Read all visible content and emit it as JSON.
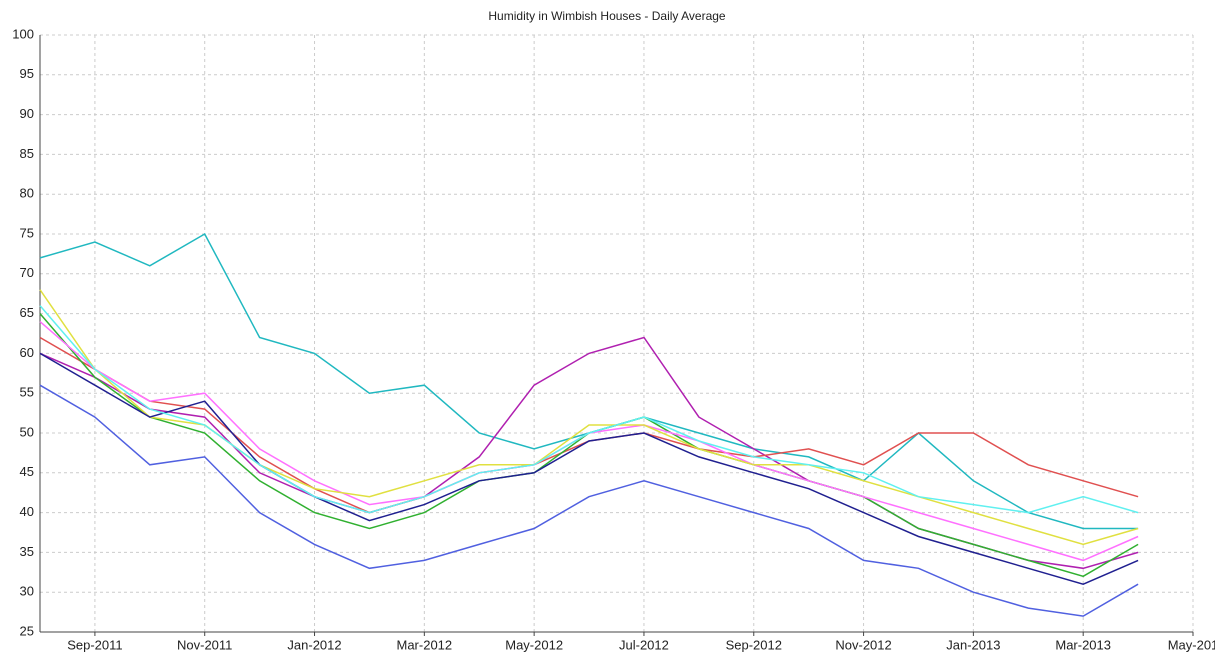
{
  "chart_data": {
    "type": "line",
    "title": "Humidity in Wimbish Houses - Daily Average",
    "x": [
      "2011-08",
      "2011-09",
      "2011-10",
      "2011-11",
      "2011-12",
      "2012-01",
      "2012-02",
      "2012-03",
      "2012-04",
      "2012-05",
      "2012-06",
      "2012-07",
      "2012-08",
      "2012-09",
      "2012-10",
      "2012-11",
      "2012-12",
      "2013-01",
      "2013-02",
      "2013-03",
      "2013-04"
    ],
    "xlim": [
      "2011-08",
      "2013-05"
    ],
    "xticks": [
      {
        "value": "2011-09",
        "label": "Sep-2011"
      },
      {
        "value": "2011-11",
        "label": "Nov-2011"
      },
      {
        "value": "2012-01",
        "label": "Jan-2012"
      },
      {
        "value": "2012-03",
        "label": "Mar-2012"
      },
      {
        "value": "2012-05",
        "label": "May-2012"
      },
      {
        "value": "2012-07",
        "label": "Jul-2012"
      },
      {
        "value": "2012-09",
        "label": "Sep-2012"
      },
      {
        "value": "2012-11",
        "label": "Nov-2012"
      },
      {
        "value": "2013-01",
        "label": "Jan-2013"
      },
      {
        "value": "2013-03",
        "label": "Mar-2013"
      },
      {
        "value": "2013-05",
        "label": "May-201"
      }
    ],
    "ylim": [
      25,
      100
    ],
    "yticks": [
      25,
      30,
      35,
      40,
      45,
      50,
      55,
      60,
      65,
      70,
      75,
      80,
      85,
      90,
      95,
      100
    ],
    "grid": true,
    "series": [
      {
        "color": "#20b8c0",
        "values": [
          72,
          74,
          71,
          75,
          62,
          60,
          55,
          56,
          50,
          48,
          50,
          52,
          50,
          48,
          47,
          44,
          50,
          44,
          40,
          38,
          38
        ]
      },
      {
        "color": "#b020b0",
        "values": [
          60,
          57,
          53,
          52,
          45,
          42,
          40,
          42,
          47,
          56,
          60,
          62,
          52,
          48,
          44,
          42,
          38,
          36,
          34,
          33,
          35
        ]
      },
      {
        "color": "#e05050",
        "values": [
          62,
          58,
          54,
          53,
          47,
          43,
          40,
          42,
          45,
          46,
          49,
          50,
          48,
          47,
          48,
          46,
          50,
          50,
          46,
          44,
          42
        ]
      },
      {
        "color": "#5060e0",
        "values": [
          56,
          52,
          46,
          47,
          40,
          36,
          33,
          34,
          36,
          38,
          42,
          44,
          42,
          40,
          38,
          34,
          33,
          30,
          28,
          27,
          31
        ]
      },
      {
        "color": "#30b030",
        "values": [
          65,
          57,
          52,
          50,
          44,
          40,
          38,
          40,
          44,
          45,
          50,
          52,
          48,
          46,
          44,
          42,
          38,
          36,
          34,
          32,
          36
        ]
      },
      {
        "color": "#ff70ff",
        "values": [
          64,
          58,
          54,
          55,
          48,
          44,
          41,
          42,
          45,
          46,
          50,
          51,
          49,
          46,
          44,
          42,
          40,
          38,
          36,
          34,
          37
        ]
      },
      {
        "color": "#e0e040",
        "values": [
          68,
          58,
          52,
          51,
          46,
          43,
          42,
          44,
          46,
          46,
          51,
          51,
          48,
          46,
          46,
          44,
          42,
          40,
          38,
          36,
          38
        ]
      },
      {
        "color": "#202090",
        "values": [
          60,
          56,
          52,
          54,
          46,
          42,
          39,
          41,
          44,
          45,
          49,
          50,
          47,
          45,
          43,
          40,
          37,
          35,
          33,
          31,
          34
        ]
      },
      {
        "color": "#60f0f0",
        "values": [
          66,
          58,
          53,
          51,
          46,
          42,
          40,
          42,
          45,
          46,
          50,
          52,
          49,
          47,
          46,
          45,
          42,
          41,
          40,
          42,
          40
        ]
      }
    ]
  }
}
